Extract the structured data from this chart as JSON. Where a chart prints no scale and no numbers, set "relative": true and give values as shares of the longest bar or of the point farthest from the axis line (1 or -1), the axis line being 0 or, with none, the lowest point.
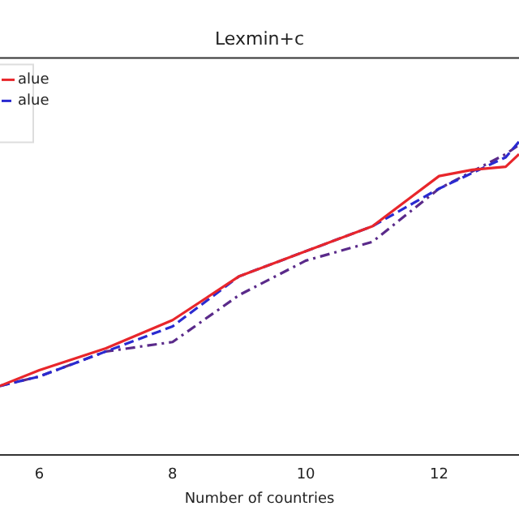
{
  "chart_data": {
    "type": "line",
    "title": "Lexmin+c",
    "xlabel": "Number of countries",
    "relative": true,
    "xlim": [
      5.41,
      13.2
    ],
    "xticks": [
      6,
      8,
      10,
      12
    ],
    "legend": "top left",
    "grid": false,
    "marker": "none",
    "series": [
      {
        "name": "alue",
        "color": "#e8262b",
        "line_style": "solid",
        "x": [
          5.41,
          6,
          7,
          8,
          9,
          10,
          11,
          12,
          12.5,
          13,
          13.2
        ],
        "values": [
          0.22,
          0.27,
          0.34,
          0.43,
          0.57,
          0.65,
          0.73,
          0.89,
          0.91,
          0.92,
          0.96
        ]
      },
      {
        "name": "alue",
        "color": "#2a2ad0",
        "line_style": "dashed",
        "x": [
          5.41,
          6,
          7,
          8,
          9,
          10,
          11,
          12,
          13,
          13.2
        ],
        "values": [
          0.22,
          0.25,
          0.33,
          0.41,
          0.57,
          0.65,
          0.73,
          0.85,
          0.95,
          1
        ]
      },
      {
        "color": "#5a2a8a",
        "line_style": "dashdot",
        "x": [
          5.41,
          6,
          7,
          8,
          9,
          10,
          11,
          12,
          13,
          13.2
        ],
        "values": [
          0.22,
          0.25,
          0.33,
          0.36,
          0.51,
          0.62,
          0.68,
          0.85,
          0.96,
          0.99
        ]
      }
    ]
  }
}
